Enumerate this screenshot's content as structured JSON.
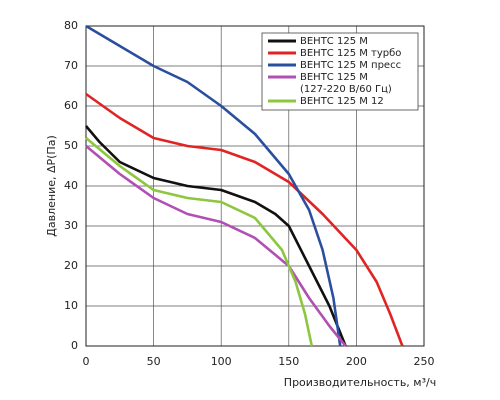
{
  "chart_data": {
    "type": "line",
    "x_label": "Производительность, м³/ч",
    "y_label": "Давление, ΔP(Па)",
    "xlim": [
      0,
      250
    ],
    "xticks": [
      0,
      50,
      100,
      150,
      200,
      250
    ],
    "ylim": [
      0,
      80
    ],
    "yticks": [
      0,
      10,
      20,
      30,
      40,
      50,
      60,
      70,
      80
    ],
    "grid": true,
    "legend": "upper right",
    "series": [
      {
        "name": "ВЕНТС 125 М",
        "color": "#111111",
        "x": [
          0,
          10,
          25,
          50,
          75,
          100,
          125,
          140,
          150,
          165,
          180,
          192
        ],
        "values": [
          55,
          51,
          46,
          42,
          40,
          39,
          36,
          33,
          30,
          20,
          10,
          0
        ]
      },
      {
        "name": "ВЕНТС 125 М турбо",
        "color": "#e02424",
        "x": [
          0,
          25,
          50,
          75,
          100,
          125,
          150,
          175,
          200,
          215,
          225,
          234
        ],
        "values": [
          63,
          57,
          52,
          50,
          49,
          46,
          41,
          33,
          24,
          16,
          8,
          0
        ]
      },
      {
        "name": "ВЕНТС 125 М пресс",
        "color": "#2a4f9e",
        "x": [
          0,
          25,
          50,
          75,
          100,
          125,
          150,
          165,
          175,
          183,
          188
        ],
        "values": [
          80,
          75,
          70,
          66,
          60,
          53,
          43,
          34,
          24,
          12,
          0
        ]
      },
      {
        "name": "ВЕНТС 125 М\n(127-220 В/60 Гц)",
        "color": "#b04fb4",
        "x": [
          0,
          25,
          50,
          75,
          100,
          125,
          150,
          165,
          180,
          192
        ],
        "values": [
          50,
          43,
          37,
          33,
          31,
          27,
          20,
          12,
          5,
          0
        ]
      },
      {
        "name": "ВЕНТС 125 М 12",
        "color": "#8dc63f",
        "x": [
          0,
          25,
          50,
          75,
          100,
          125,
          145,
          155,
          162,
          167
        ],
        "values": [
          52,
          45,
          39,
          37,
          36,
          32,
          24,
          16,
          8,
          0
        ]
      }
    ]
  }
}
